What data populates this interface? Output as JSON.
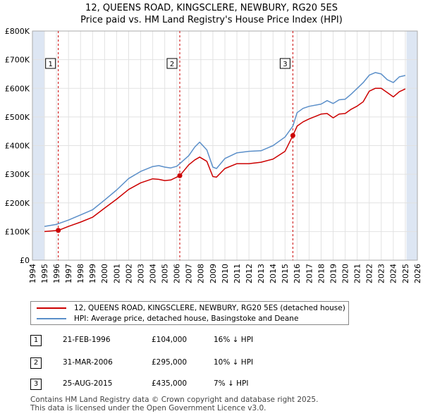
{
  "title_line1": "12, QUEENS ROAD, KINGSCLERE, NEWBURY, RG20 5ES",
  "title_line2": "Price paid vs. HM Land Registry's House Price Index (HPI)",
  "colors": {
    "property": "#cc0000",
    "hpi": "#5b8fc9",
    "shade": "#dde6f3"
  },
  "legend": {
    "property": "12, QUEENS ROAD, KINGSCLERE, NEWBURY, RG20 5ES (detached house)",
    "hpi": "HPI: Average price, detached house, Basingstoke and Deane"
  },
  "transactions": [
    {
      "id": "1",
      "date": "21-FEB-1996",
      "price": "£104,000",
      "hpi": "16% ↓ HPI"
    },
    {
      "id": "2",
      "date": "31-MAR-2006",
      "price": "£295,000",
      "hpi": "10% ↓ HPI"
    },
    {
      "id": "3",
      "date": "25-AUG-2015",
      "price": "£435,000",
      "hpi": "7% ↓ HPI"
    }
  ],
  "footer": {
    "line1": "Contains HM Land Registry data © Crown copyright and database right 2025.",
    "line2": "This data is licensed under the Open Government Licence v3.0."
  },
  "chart_data": {
    "type": "line",
    "xlim": [
      1994,
      2026
    ],
    "ylim": [
      0,
      800000
    ],
    "x_ticks": [
      1994,
      1995,
      1996,
      1997,
      1998,
      1999,
      2000,
      2001,
      2002,
      2003,
      2004,
      2005,
      2006,
      2007,
      2008,
      2009,
      2010,
      2011,
      2012,
      2013,
      2014,
      2015,
      2016,
      2017,
      2018,
      2019,
      2020,
      2021,
      2022,
      2023,
      2024,
      2025,
      2026
    ],
    "y_ticks": [
      {
        "value": 0,
        "label": "£0"
      },
      {
        "value": 100000,
        "label": "£100K"
      },
      {
        "value": 200000,
        "label": "£200K"
      },
      {
        "value": 300000,
        "label": "£300K"
      },
      {
        "value": 400000,
        "label": "£400K"
      },
      {
        "value": 500000,
        "label": "£500K"
      },
      {
        "value": 600000,
        "label": "£600K"
      },
      {
        "value": 700000,
        "label": "£700K"
      },
      {
        "value": 800000,
        "label": "£800K"
      }
    ],
    "shaded_ranges": [
      [
        1994,
        1995.0
      ],
      [
        2025.1,
        2026
      ]
    ],
    "series": [
      {
        "name": "12, QUEENS ROAD, KINGSCLERE, NEWBURY, RG20 5ES (detached house)",
        "x": [
          1995.0,
          1996.15,
          1997,
          1998,
          1999,
          2000,
          2001,
          2002,
          2003,
          2004,
          2004.5,
          2005,
          2005.5,
          2006.25,
          2007,
          2007.5,
          2007.9,
          2008.5,
          2009.0,
          2009.3,
          2010,
          2011,
          2012,
          2013,
          2014,
          2015.0,
          2015.65,
          2016,
          2016.5,
          2017,
          2018,
          2018.5,
          2019,
          2019.5,
          2020,
          2020.5,
          2021,
          2021.5,
          2022,
          2022.5,
          2023,
          2023.5,
          2024,
          2024.5,
          2025
        ],
        "values": [
          100000,
          104000,
          118000,
          133000,
          150000,
          182000,
          213000,
          247000,
          270000,
          284000,
          282000,
          278000,
          280000,
          295000,
          333000,
          350000,
          360000,
          345000,
          292000,
          290000,
          320000,
          337000,
          337000,
          342000,
          353000,
          380000,
          435000,
          468000,
          483000,
          493000,
          510000,
          512000,
          497000,
          510000,
          512000,
          527000,
          538000,
          553000,
          590000,
          600000,
          600000,
          585000,
          570000,
          588000,
          598000
        ]
      },
      {
        "name": "HPI: Average price, detached house, Basingstoke and Deane",
        "x": [
          1995.0,
          1996,
          1997,
          1998,
          1999,
          2000,
          2001,
          2002,
          2003,
          2004,
          2004.5,
          2005,
          2005.5,
          2006,
          2007,
          2007.5,
          2007.9,
          2008.5,
          2009.0,
          2009.3,
          2010,
          2011,
          2012,
          2013,
          2014,
          2015,
          2015.65,
          2016,
          2016.5,
          2017,
          2018,
          2018.5,
          2019,
          2019.5,
          2020,
          2020.5,
          2021,
          2021.5,
          2022,
          2022.5,
          2023,
          2023.5,
          2024,
          2024.5,
          2025
        ],
        "values": [
          118000,
          125000,
          140000,
          158000,
          176000,
          210000,
          245000,
          285000,
          310000,
          327000,
          330000,
          325000,
          322000,
          328000,
          365000,
          395000,
          412000,
          385000,
          325000,
          320000,
          355000,
          375000,
          380000,
          382000,
          400000,
          430000,
          468000,
          515000,
          530000,
          537000,
          545000,
          557000,
          547000,
          560000,
          562000,
          580000,
          600000,
          620000,
          646000,
          655000,
          650000,
          630000,
          620000,
          640000,
          645000
        ]
      }
    ],
    "markers": [
      {
        "label": "1",
        "x": 1996.15,
        "y": 104000
      },
      {
        "label": "2",
        "x": 2006.25,
        "y": 295000
      },
      {
        "label": "3",
        "x": 2015.65,
        "y": 435000
      }
    ]
  }
}
